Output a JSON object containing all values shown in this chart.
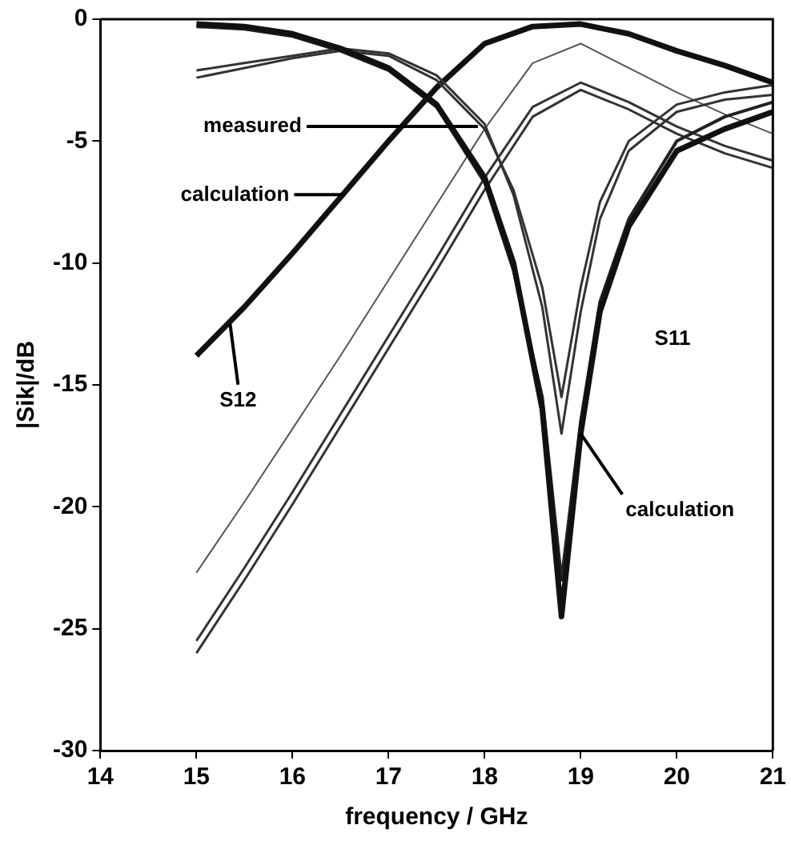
{
  "chart_data": {
    "type": "line",
    "xlabel": "frequency / GHz",
    "ylabel": "|Sik|/dB",
    "xlim": [
      14,
      21
    ],
    "xticks": [
      14,
      15,
      16,
      17,
      18,
      19,
      20,
      21
    ],
    "ylim": [
      -30,
      0
    ],
    "yticks": [
      -30,
      -25,
      -20,
      -15,
      -10,
      -5,
      0
    ],
    "grid": false,
    "legend": false,
    "marker": "none",
    "line_style": "solid",
    "series": [
      {
        "color": "#111111",
        "x": [
          15,
          15.5,
          16,
          16.5,
          17,
          17.5,
          18,
          18.3,
          18.6,
          18.8,
          19,
          19.2,
          19.5,
          20,
          20.5,
          21
        ],
        "values": [
          -0.2,
          -0.3,
          -0.6,
          -1.2,
          -2.0,
          -3.5,
          -6.5,
          -10,
          -16,
          -24.5,
          -17,
          -12,
          -8.5,
          -5.4,
          -4.5,
          -3.8
        ]
      },
      {
        "color": "#222222",
        "x": [
          15,
          15.5,
          16,
          16.5,
          17,
          17.5,
          18,
          18.3,
          18.6,
          18.8,
          19,
          19.2,
          19.5,
          20,
          20.5,
          21
        ],
        "values": [
          -0.3,
          -0.4,
          -0.7,
          -1.3,
          -2.1,
          -3.6,
          -6.7,
          -10.3,
          -15.5,
          -23,
          -16.5,
          -11.6,
          -8.2,
          -5.0,
          -4.0,
          -3.4
        ]
      },
      {
        "color": "#333333",
        "x": [
          15,
          15.5,
          16,
          16.5,
          17,
          17.5,
          18,
          18.3,
          18.6,
          18.8,
          19,
          19.2,
          19.5,
          20,
          20.5,
          21
        ],
        "values": [
          -2.4,
          -2.0,
          -1.6,
          -1.3,
          -1.5,
          -2.5,
          -4.5,
          -7,
          -11,
          -15.5,
          -11,
          -7.5,
          -5,
          -3.5,
          -3.0,
          -2.7
        ]
      },
      {
        "color": "#333333",
        "x": [
          15,
          15.5,
          16,
          16.5,
          17,
          17.5,
          18,
          18.3,
          18.6,
          18.8,
          19,
          19.2,
          19.5,
          20,
          20.5,
          21
        ],
        "values": [
          -2.1,
          -1.8,
          -1.5,
          -1.2,
          -1.4,
          -2.3,
          -4.3,
          -7.2,
          -11.8,
          -17,
          -12,
          -8.2,
          -5.4,
          -3.8,
          -3.3,
          -3.1
        ]
      },
      {
        "color": "#111111",
        "x": [
          15,
          15.5,
          16,
          16.5,
          17,
          17.5,
          18,
          18.5,
          19,
          19.5,
          20,
          20.5,
          21
        ],
        "values": [
          -13.8,
          -11.8,
          -9.6,
          -7.3,
          -5.0,
          -2.8,
          -1.0,
          -0.3,
          -0.2,
          -0.6,
          -1.3,
          -1.9,
          -2.6
        ]
      },
      {
        "color": "#555555",
        "x": [
          15,
          15.5,
          16,
          16.5,
          17,
          17.5,
          18,
          18.5,
          19,
          19.5,
          20,
          20.5,
          21
        ],
        "values": [
          -22.7,
          -19.8,
          -16.8,
          -13.8,
          -10.7,
          -7.6,
          -4.5,
          -1.8,
          -1.0,
          -2.0,
          -3.0,
          -3.9,
          -4.7
        ]
      },
      {
        "color": "#333333",
        "x": [
          15,
          15.5,
          16,
          16.5,
          17,
          17.5,
          18,
          18.5,
          19,
          19.5,
          20,
          20.5,
          21
        ],
        "values": [
          -25.5,
          -22.5,
          -19.4,
          -16.2,
          -13.0,
          -9.8,
          -6.5,
          -3.6,
          -2.6,
          -3.4,
          -4.4,
          -5.2,
          -5.8
        ]
      },
      {
        "color": "#333333",
        "x": [
          15,
          15.5,
          16,
          16.5,
          17,
          17.5,
          18,
          18.5,
          19,
          19.5,
          20,
          20.5,
          21
        ],
        "values": [
          -26,
          -23,
          -19.9,
          -16.7,
          -13.5,
          -10.3,
          -7.0,
          -4.0,
          -2.9,
          -3.7,
          -4.7,
          -5.5,
          -6.1
        ]
      }
    ],
    "annotations": [
      {
        "text": "measured",
        "x": 17.93,
        "y": -4.4
      },
      {
        "text": "calculation",
        "x": 16.55,
        "y": -7.2
      },
      {
        "text": "S12",
        "x": 15.35,
        "y": -12.5
      },
      "S11",
      {
        "text": "calculation",
        "x": 19,
        "y": -17
      }
    ]
  }
}
